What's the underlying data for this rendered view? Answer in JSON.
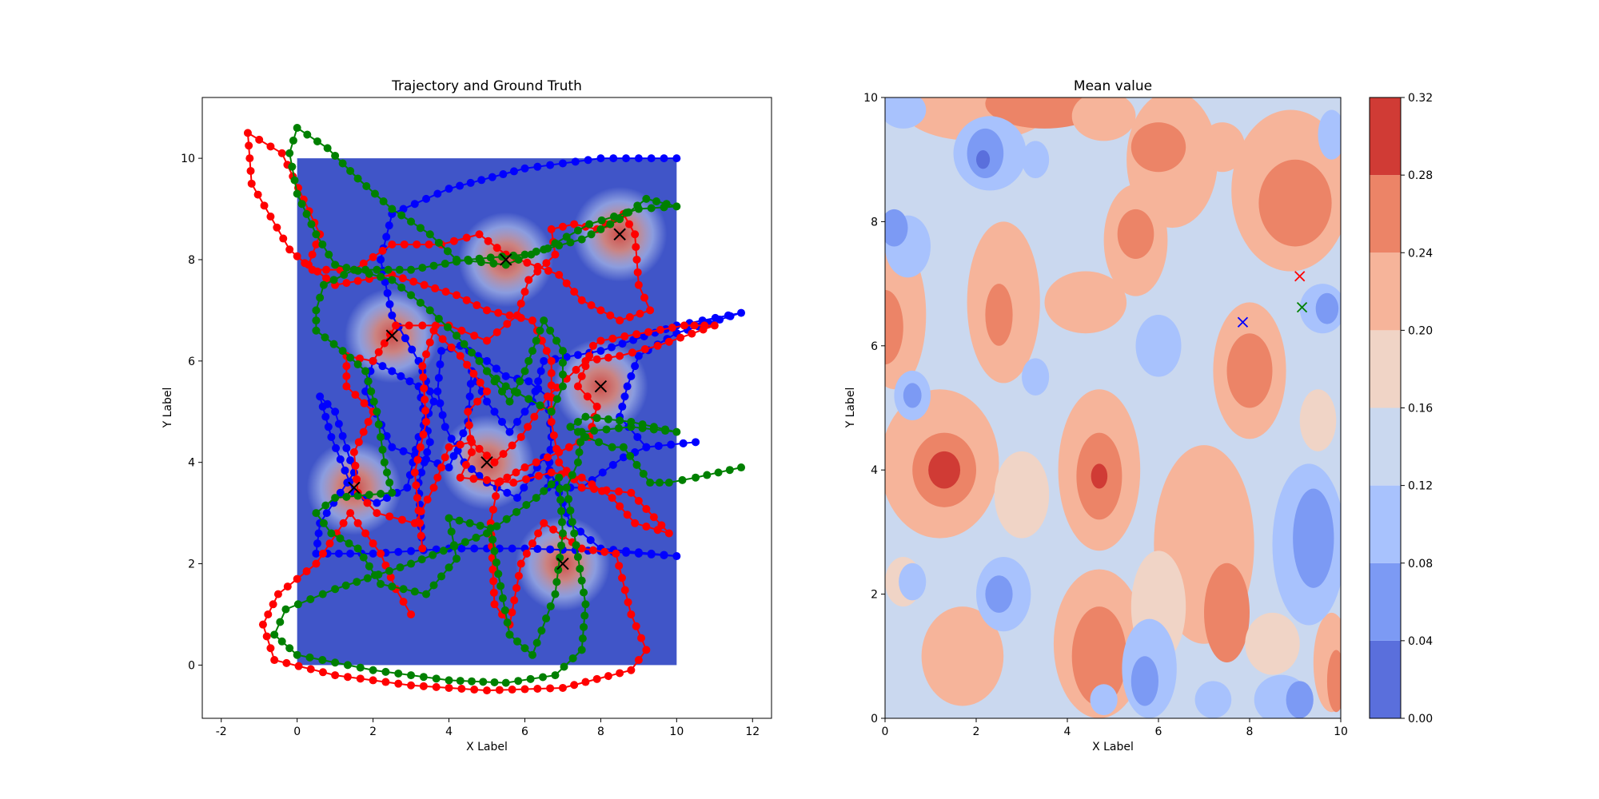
{
  "chart_data": [
    {
      "type": "line",
      "title": "Trajectory and Ground Truth",
      "xlabel": "X Label",
      "ylabel": "Y Label",
      "xlim": [
        -2.5,
        12.5
      ],
      "ylim": [
        -1.05,
        11.2
      ],
      "xticks": [
        "-2",
        "0",
        "2",
        "4",
        "6",
        "8",
        "10",
        "12"
      ],
      "yticks": [
        "0",
        "2",
        "4",
        "6",
        "8",
        "10"
      ],
      "grid": false,
      "background": {
        "type": "heatmap",
        "extent": [
          0,
          10,
          0,
          10
        ],
        "colormap": "coolwarm"
      },
      "ground_truth_marker": "x",
      "ground_truth": [
        {
          "x": 2.5,
          "y": 6.5
        },
        {
          "x": 5.5,
          "y": 8.0
        },
        {
          "x": 8.5,
          "y": 8.5
        },
        {
          "x": 8.0,
          "y": 5.5
        },
        {
          "x": 5.0,
          "y": 4.0
        },
        {
          "x": 1.5,
          "y": 3.5
        },
        {
          "x": 7.0,
          "y": 2.0
        }
      ],
      "series": [
        {
          "color": "#0000ff",
          "points": [
            [
              10.0,
              10.0
            ],
            [
              8.0,
              10.0
            ],
            [
              6.0,
              9.8
            ],
            [
              4.0,
              9.4
            ],
            [
              2.5,
              8.9
            ],
            [
              2.2,
              8.0
            ],
            [
              2.5,
              6.9
            ],
            [
              3.2,
              6.0
            ],
            [
              3.6,
              5.2
            ],
            [
              3.2,
              4.5
            ],
            [
              2.9,
              3.5
            ],
            [
              2.1,
              3.2
            ],
            [
              1.5,
              3.4
            ],
            [
              0.9,
              4.5
            ],
            [
              0.6,
              5.3
            ],
            [
              1.0,
              5.0
            ],
            [
              1.5,
              3.8
            ],
            [
              0.6,
              2.8
            ],
            [
              0.5,
              2.2
            ],
            [
              2.0,
              2.2
            ],
            [
              4.0,
              2.3
            ],
            [
              6.0,
              2.3
            ],
            [
              8.0,
              2.25
            ],
            [
              10.0,
              2.15
            ],
            [
              8.0,
              2.3
            ],
            [
              7.2,
              2.8
            ],
            [
              6.8,
              3.6
            ],
            [
              6.5,
              4.1
            ],
            [
              5.8,
              3.3
            ],
            [
              5.0,
              3.6
            ],
            [
              4.4,
              4.0
            ],
            [
              3.9,
              4.7
            ],
            [
              3.7,
              5.4
            ],
            [
              3.8,
              6.2
            ],
            [
              4.3,
              6.3
            ],
            [
              5.0,
              6.0
            ],
            [
              5.5,
              5.7
            ],
            [
              6.1,
              5.6
            ],
            [
              6.6,
              5.3
            ],
            [
              6.7,
              4.5
            ],
            [
              6.6,
              3.5
            ],
            [
              7.5,
              3.5
            ],
            [
              8.6,
              4.1
            ],
            [
              9.2,
              4.3
            ],
            [
              10.5,
              4.4
            ],
            [
              9.2,
              4.3
            ],
            [
              8.5,
              4.9
            ],
            [
              8.7,
              5.5
            ],
            [
              9.0,
              6.1
            ],
            [
              10.0,
              6.55
            ],
            [
              11.7,
              6.95
            ],
            [
              10.0,
              6.7
            ],
            [
              8.0,
              6.2
            ],
            [
              6.5,
              6.0
            ],
            [
              6.2,
              5.2
            ],
            [
              5.6,
              4.6
            ],
            [
              5.0,
              5.2
            ],
            [
              4.6,
              5.8
            ],
            [
              4.5,
              4.8
            ],
            [
              4.0,
              3.9
            ],
            [
              2.5,
              4.3
            ],
            [
              1.8,
              5.4
            ],
            [
              2.0,
              6.0
            ],
            [
              2.5,
              5.8
            ],
            [
              3.2,
              5.5
            ],
            [
              3.5,
              4.4
            ],
            [
              3.2,
              3.6
            ],
            [
              3.3,
              2.3
            ]
          ]
        },
        {
          "color": "#ff0000",
          "points": [
            [
              3.0,
              1.0
            ],
            [
              2.6,
              1.5
            ],
            [
              2.2,
              2.2
            ],
            [
              1.4,
              3.0
            ],
            [
              0.5,
              2.0
            ],
            [
              -0.5,
              1.4
            ],
            [
              -0.9,
              0.8
            ],
            [
              -0.6,
              0.1
            ],
            [
              1.0,
              -0.2
            ],
            [
              3.0,
              -0.4
            ],
            [
              5.0,
              -0.5
            ],
            [
              7.0,
              -0.45
            ],
            [
              8.8,
              -0.1
            ],
            [
              9.2,
              0.3
            ],
            [
              8.8,
              1.0
            ],
            [
              8.4,
              2.2
            ],
            [
              7.5,
              2.3
            ],
            [
              6.5,
              2.8
            ],
            [
              5.9,
              2.0
            ],
            [
              5.6,
              0.8
            ],
            [
              5.2,
              1.2
            ],
            [
              5.1,
              2.8
            ],
            [
              5.3,
              3.6
            ],
            [
              6.0,
              3.9
            ],
            [
              6.9,
              4.2
            ],
            [
              7.7,
              4.5
            ],
            [
              7.9,
              5.1
            ],
            [
              7.4,
              5.5
            ],
            [
              7.8,
              6.3
            ],
            [
              8.0,
              6.4
            ],
            [
              10.2,
              6.7
            ],
            [
              11.0,
              6.7
            ],
            [
              9.5,
              6.3
            ],
            [
              8.5,
              6.1
            ],
            [
              7.6,
              6.0
            ],
            [
              6.6,
              5.3
            ],
            [
              5.9,
              4.5
            ],
            [
              5.2,
              4.0
            ],
            [
              4.6,
              4.4
            ],
            [
              4.0,
              4.3
            ],
            [
              3.6,
              3.5
            ],
            [
              3.1,
              2.8
            ],
            [
              2.1,
              3.0
            ],
            [
              1.6,
              3.4
            ],
            [
              1.5,
              4.2
            ],
            [
              2.0,
              5.0
            ],
            [
              1.3,
              5.5
            ],
            [
              1.3,
              6.1
            ],
            [
              2.0,
              6.0
            ],
            [
              2.6,
              6.7
            ],
            [
              4.0,
              6.7
            ],
            [
              5.0,
              6.4
            ],
            [
              5.8,
              6.9
            ],
            [
              6.1,
              7.6
            ],
            [
              6.8,
              8.1
            ],
            [
              6.7,
              8.6
            ],
            [
              7.3,
              8.7
            ],
            [
              7.9,
              8.6
            ],
            [
              8.6,
              8.9
            ],
            [
              8.9,
              8.5
            ],
            [
              9.0,
              7.5
            ],
            [
              9.3,
              7.0
            ],
            [
              8.5,
              6.8
            ],
            [
              7.5,
              7.2
            ],
            [
              6.9,
              7.7
            ],
            [
              5.5,
              8.1
            ],
            [
              4.8,
              8.5
            ],
            [
              3.8,
              8.3
            ],
            [
              2.5,
              8.3
            ],
            [
              1.5,
              7.8
            ],
            [
              0.4,
              7.8
            ],
            [
              -0.2,
              8.2
            ],
            [
              -1.2,
              9.5
            ],
            [
              -1.3,
              10.5
            ],
            [
              -0.4,
              10.1
            ],
            [
              0.6,
              8.5
            ],
            [
              0.3,
              7.9
            ],
            [
              1.0,
              7.5
            ],
            [
              2.5,
              7.7
            ],
            [
              4.2,
              7.3
            ],
            [
              5.0,
              7.0
            ],
            [
              6.2,
              6.8
            ],
            [
              6.7,
              6.0
            ],
            [
              6.7,
              4.8
            ],
            [
              6.9,
              4.0
            ],
            [
              7.5,
              3.5
            ],
            [
              8.8,
              3.4
            ],
            [
              9.8,
              2.6
            ],
            [
              8.9,
              2.8
            ],
            [
              8.3,
              3.3
            ],
            [
              7.5,
              3.7
            ],
            [
              6.7,
              3.8
            ],
            [
              5.7,
              3.6
            ],
            [
              4.3,
              3.7
            ],
            [
              4.6,
              4.2
            ],
            [
              4.5,
              5.0
            ],
            [
              5.0,
              5.4
            ],
            [
              4.3,
              6.1
            ],
            [
              3.6,
              6.6
            ],
            [
              3.3,
              5.9
            ],
            [
              3.4,
              4.8
            ],
            [
              3.1,
              3.8
            ],
            [
              3.3,
              2.3
            ]
          ]
        },
        {
          "color": "#008000",
          "points": [
            [
              11.7,
              3.9
            ],
            [
              10.5,
              3.7
            ],
            [
              9.8,
              3.6
            ],
            [
              9.3,
              3.6
            ],
            [
              8.6,
              4.3
            ],
            [
              8.3,
              4.3
            ],
            [
              7.6,
              4.5
            ],
            [
              7.2,
              4.7
            ],
            [
              7.6,
              4.9
            ],
            [
              8.8,
              4.8
            ],
            [
              10.0,
              4.6
            ],
            [
              8.8,
              4.7
            ],
            [
              7.5,
              4.6
            ],
            [
              7.4,
              4.0
            ],
            [
              7.1,
              3.5
            ],
            [
              7.3,
              2.6
            ],
            [
              7.6,
              1.2
            ],
            [
              7.5,
              0.3
            ],
            [
              6.8,
              -0.2
            ],
            [
              5.5,
              -0.35
            ],
            [
              4.0,
              -0.3
            ],
            [
              2.0,
              -0.1
            ],
            [
              0.0,
              0.2
            ],
            [
              -0.6,
              0.6
            ],
            [
              -0.3,
              1.1
            ],
            [
              1.0,
              1.5
            ],
            [
              3.0,
              2.0
            ],
            [
              5.0,
              2.6
            ],
            [
              6.3,
              3.3
            ],
            [
              6.9,
              3.7
            ],
            [
              7.0,
              2.6
            ],
            [
              6.8,
              1.4
            ],
            [
              6.2,
              0.2
            ],
            [
              5.6,
              0.6
            ],
            [
              5.3,
              1.8
            ],
            [
              5.1,
              2.7
            ],
            [
              4.0,
              2.9
            ],
            [
              4.2,
              2.1
            ],
            [
              3.4,
              1.4
            ],
            [
              2.2,
              1.6
            ],
            [
              1.6,
              2.3
            ],
            [
              0.9,
              2.6
            ],
            [
              0.5,
              3.0
            ],
            [
              1.0,
              3.3
            ],
            [
              2.5,
              3.4
            ],
            [
              2.3,
              4.0
            ],
            [
              2.1,
              5.0
            ],
            [
              1.8,
              5.8
            ],
            [
              1.2,
              6.2
            ],
            [
              0.5,
              6.6
            ],
            [
              0.5,
              7.0
            ],
            [
              0.7,
              7.5
            ],
            [
              1.5,
              7.8
            ],
            [
              3.0,
              7.8
            ],
            [
              4.5,
              8.0
            ],
            [
              6.0,
              8.1
            ],
            [
              7.5,
              8.4
            ],
            [
              8.5,
              8.8
            ],
            [
              9.2,
              9.2
            ],
            [
              10.0,
              9.05
            ],
            [
              9.0,
              9.0
            ],
            [
              7.7,
              8.7
            ],
            [
              6.5,
              8.2
            ],
            [
              5.5,
              7.9
            ],
            [
              4.2,
              8.0
            ],
            [
              3.5,
              8.5
            ],
            [
              2.5,
              9.0
            ],
            [
              1.6,
              9.6
            ],
            [
              0.8,
              10.2
            ],
            [
              0.0,
              10.6
            ],
            [
              -0.2,
              10.1
            ],
            [
              0.0,
              9.3
            ],
            [
              0.5,
              8.5
            ],
            [
              1.0,
              7.9
            ],
            [
              2.5,
              7.6
            ],
            [
              3.5,
              7.0
            ],
            [
              4.2,
              6.5
            ],
            [
              4.8,
              6.0
            ],
            [
              5.6,
              5.2
            ],
            [
              6.0,
              5.8
            ],
            [
              6.5,
              6.8
            ],
            [
              7.0,
              6.2
            ],
            [
              7.0,
              5.5
            ],
            [
              6.7,
              5.0
            ],
            [
              5.5,
              5.5
            ],
            [
              5.0,
              5.8
            ]
          ]
        }
      ]
    },
    {
      "type": "heatmap",
      "subtype": "filled-contour",
      "title": "Mean value",
      "xlabel": "X Label",
      "ylabel": "Y Label",
      "xlim": [
        0,
        10
      ],
      "ylim": [
        0,
        10
      ],
      "xticks": [
        "0",
        "2",
        "4",
        "6",
        "8",
        "10"
      ],
      "yticks": [
        "0",
        "2",
        "4",
        "6",
        "8",
        "10"
      ],
      "colormap": "coolwarm",
      "colorbar": {
        "levels": [
          0.0,
          0.04,
          0.08,
          0.12,
          0.16,
          0.2,
          0.24,
          0.28,
          0.32
        ],
        "ticklabels": [
          "0.00",
          "0.04",
          "0.08",
          "0.12",
          "0.16",
          "0.20",
          "0.24",
          "0.28",
          "0.32"
        ],
        "colors": [
          "#5a6fdc",
          "#7c9af4",
          "#a8c2fd",
          "#cad8ef",
          "#f0d4c6",
          "#f6b49a",
          "#ec8467",
          "#d03b35"
        ]
      },
      "markers": [
        {
          "x": 7.85,
          "y": 6.38,
          "color": "#0000ff",
          "marker": "x"
        },
        {
          "x": 9.1,
          "y": 7.12,
          "color": "#ff0000",
          "marker": "x"
        },
        {
          "x": 9.15,
          "y": 6.62,
          "color": "#008000",
          "marker": "x"
        }
      ]
    }
  ]
}
